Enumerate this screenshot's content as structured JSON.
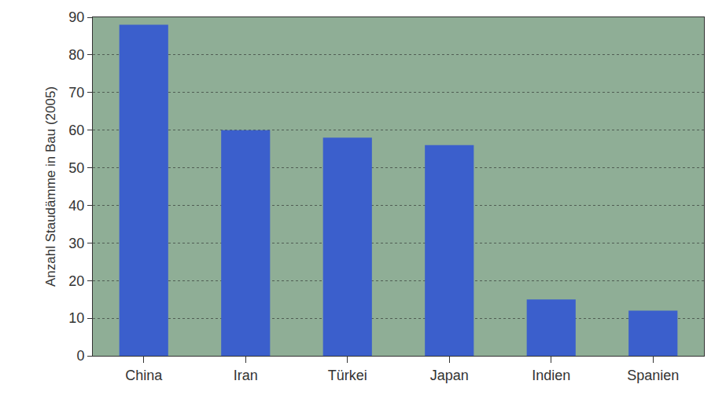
{
  "chart_data": {
    "type": "bar",
    "y_label": "Anzahl Staudämme in Bau (2005)",
    "categories": [
      "China",
      "Iran",
      "Türkei",
      "Japan",
      "Indien",
      "Spanien"
    ],
    "values": [
      88,
      60,
      58,
      56,
      15,
      12
    ],
    "color": "#3b5fcc",
    "ylim": [
      0,
      90
    ],
    "yticks": [
      0,
      10,
      20,
      30,
      40,
      50,
      60,
      70,
      80,
      90
    ],
    "grid": true
  }
}
